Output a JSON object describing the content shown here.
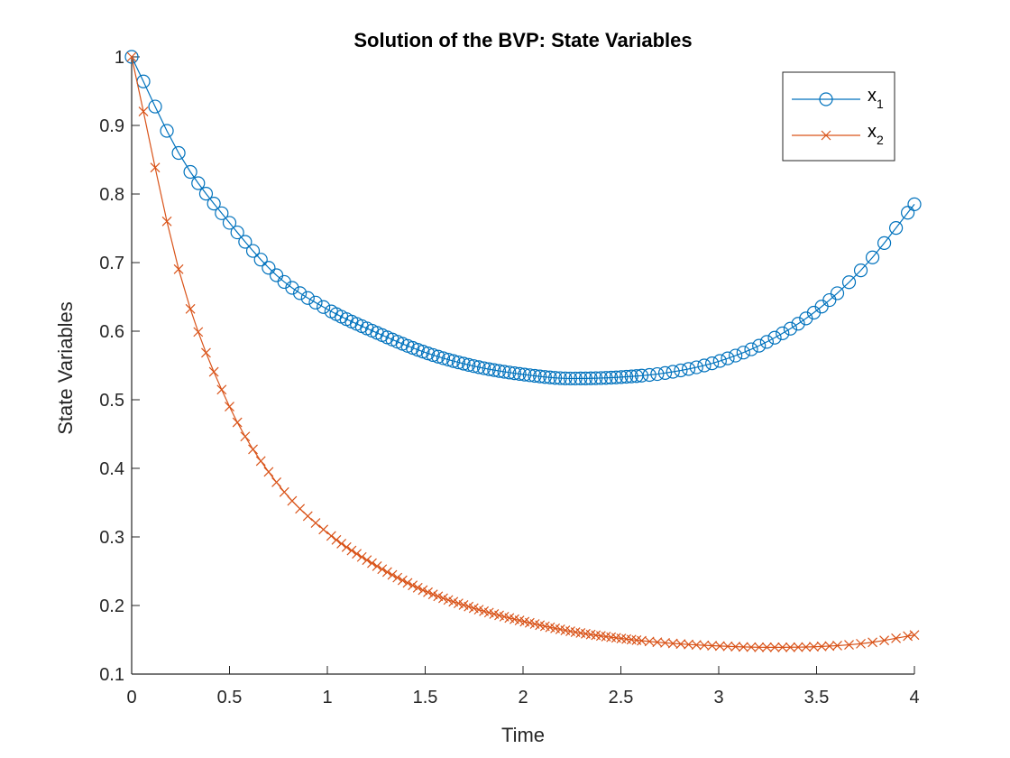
{
  "chart_data": {
    "type": "line",
    "title": "Solution of the BVP: State Variables",
    "xlabel": "Time",
    "ylabel": "State Variables",
    "xlim": [
      0,
      4
    ],
    "ylim": [
      0.1,
      1
    ],
    "xticks": [
      "0",
      "0.5",
      "1",
      "1.5",
      "2",
      "2.5",
      "3",
      "3.5",
      "4"
    ],
    "xtick_values": [
      0,
      0.5,
      1,
      1.5,
      2,
      2.5,
      3,
      3.5,
      4
    ],
    "yticks": [
      "0.1",
      "0.2",
      "0.3",
      "0.4",
      "0.5",
      "0.6",
      "0.7",
      "0.8",
      "0.9",
      "1"
    ],
    "ytick_values": [
      0.1,
      0.2,
      0.3,
      0.4,
      0.5,
      0.6,
      0.7,
      0.8,
      0.9,
      1
    ],
    "grid": false,
    "box": false,
    "legend_position": "top-right",
    "series": [
      {
        "name": "x",
        "subscript": "1",
        "color": "#0072BD",
        "marker": "circle",
        "x": [
          0,
          0.25,
          0.5,
          0.75,
          1,
          1.25,
          1.5,
          1.75,
          2,
          2.25,
          2.5,
          2.75,
          3,
          3.25,
          3.5,
          3.75,
          4
        ],
        "y": [
          1.0,
          0.855,
          0.758,
          0.679,
          0.632,
          0.598,
          0.569,
          0.549,
          0.537,
          0.531,
          0.533,
          0.54,
          0.556,
          0.585,
          0.63,
          0.696,
          0.785
        ]
      },
      {
        "name": "x",
        "subscript": "2",
        "color": "#D95319",
        "marker": "x",
        "x": [
          0,
          0.25,
          0.5,
          0.75,
          1,
          1.25,
          1.5,
          1.75,
          2,
          2.25,
          2.5,
          2.75,
          3,
          3.25,
          3.5,
          3.75,
          4
        ],
        "y": [
          1.0,
          0.68,
          0.49,
          0.376,
          0.306,
          0.258,
          0.221,
          0.196,
          0.177,
          0.162,
          0.152,
          0.145,
          0.141,
          0.139,
          0.14,
          0.145,
          0.157
        ]
      }
    ]
  }
}
